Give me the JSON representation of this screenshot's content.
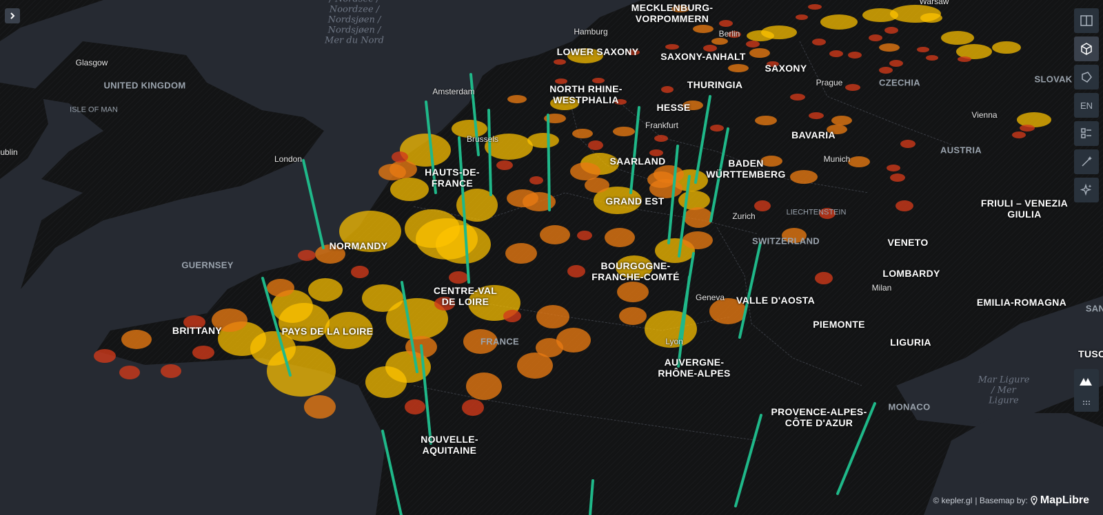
{
  "map": {
    "labels": [
      {
        "text": "MECKLENBURG-\nVORPOMMERN",
        "type": "region"
      },
      {
        "text": "Hamburg",
        "type": "city"
      },
      {
        "text": "LOWER SAXONY",
        "type": "region"
      },
      {
        "text": "Berlin",
        "type": "city"
      },
      {
        "text": "SAXONY-ANHALT",
        "type": "region"
      },
      {
        "text": "SAXONY",
        "type": "region"
      },
      {
        "text": "Warsaw",
        "type": "city"
      },
      {
        "text": "Glasgow",
        "type": "city"
      },
      {
        "text": "UNITED KINGDOM",
        "type": "country"
      },
      {
        "text": "ISLE OF MAN",
        "type": "small"
      },
      {
        "text": "ublin",
        "type": "city"
      },
      {
        "text": "Amsterdam",
        "type": "city"
      },
      {
        "text": "NORTH RHINE-\nWESTPHALIA",
        "type": "region"
      },
      {
        "text": "THURINGIA",
        "type": "region"
      },
      {
        "text": "HESSE",
        "type": "region"
      },
      {
        "text": "Prague",
        "type": "city"
      },
      {
        "text": "CZECHIA",
        "type": "country"
      },
      {
        "text": "SLOVAK",
        "type": "country"
      },
      {
        "text": "Frankfurt",
        "type": "city"
      },
      {
        "text": "BAVARIA",
        "type": "region"
      },
      {
        "text": "Vienna",
        "type": "city"
      },
      {
        "text": "Brussels",
        "type": "city"
      },
      {
        "text": "London",
        "type": "city"
      },
      {
        "text": "AUSTRIA",
        "type": "country"
      },
      {
        "text": "HAUTS-DE-\nFRANCE",
        "type": "region"
      },
      {
        "text": "SAARLAND",
        "type": "region"
      },
      {
        "text": "BADEN\nWÜRTTEMBERG",
        "type": "region"
      },
      {
        "text": "Munich",
        "type": "city"
      },
      {
        "text": "GRAND EST",
        "type": "region"
      },
      {
        "text": "LIECHTENSTEIN",
        "type": "small"
      },
      {
        "text": "FRIULI – VENEZIA\nGIULIA",
        "type": "region"
      },
      {
        "text": "Zurich",
        "type": "city"
      },
      {
        "text": "NORMANDY",
        "type": "region"
      },
      {
        "text": "SWITZERLAND",
        "type": "country"
      },
      {
        "text": "VENETO",
        "type": "region"
      },
      {
        "text": "GUERNSEY",
        "type": "country"
      },
      {
        "text": "BOURGOGNE-\nFRANCHE-COMTÉ",
        "type": "region"
      },
      {
        "text": "LOMBARDY",
        "type": "region"
      },
      {
        "text": "Milan",
        "type": "city"
      },
      {
        "text": "CENTRE-VAL\nDE LOIRE",
        "type": "region"
      },
      {
        "text": "Geneva",
        "type": "city"
      },
      {
        "text": "VALLE D'AOSTA",
        "type": "region"
      },
      {
        "text": "EMILIA-ROMAGNA",
        "type": "region"
      },
      {
        "text": "SAN",
        "type": "country"
      },
      {
        "text": "BRITTANY",
        "type": "region"
      },
      {
        "text": "PAYS DE LA LOIRE",
        "type": "region"
      },
      {
        "text": "PIEMONTE",
        "type": "region"
      },
      {
        "text": "FRANCE",
        "type": "country"
      },
      {
        "text": "Lyon",
        "type": "city"
      },
      {
        "text": "LIGURIA",
        "type": "region"
      },
      {
        "text": "TUSCA",
        "type": "region"
      },
      {
        "text": "AUVERGNE-\nRHÔNE-ALPES",
        "type": "region"
      },
      {
        "text": "Mar Ligure\n/ Mer\nLigure",
        "type": "sea"
      },
      {
        "text": "MONACO",
        "type": "country"
      },
      {
        "text": "PROVENCE-ALPES-\nCÔTE D'AZUR",
        "type": "region"
      },
      {
        "text": "NOUVELLE-\nAQUITAINE",
        "type": "region"
      },
      {
        "text": "/ Nordsee /\nNoordzee /\nNordsjøen /\nNordsjøen /\nMer du Nord",
        "type": "sea"
      }
    ]
  },
  "sidebar_toggle": {
    "icon": "chevron-right-icon"
  },
  "toolbar": [
    {
      "name": "split-map-button",
      "icon": "split-map-icon",
      "label": ""
    },
    {
      "name": "3d-view-button",
      "icon": "cube-icon",
      "label": "",
      "active": true
    },
    {
      "name": "draw-polygon-button",
      "icon": "polygon-icon",
      "label": ""
    },
    {
      "name": "locale-button",
      "icon": "",
      "label": "EN"
    },
    {
      "name": "legend-button",
      "icon": "legend-icon",
      "label": ""
    },
    {
      "name": "effects-button",
      "icon": "magic-wand-icon",
      "label": ""
    },
    {
      "name": "ai-assistant-button",
      "icon": "sparkle-icon",
      "label": ""
    }
  ],
  "attribution": {
    "kepler": "© kepler.gl",
    "sep": " | Basemap by:",
    "maplibre": "MapLibre"
  },
  "colors": {
    "background": "#242730",
    "land": "#151515",
    "ocean": "#262a32",
    "column": "#1fb889",
    "point_low": "#d23a1a",
    "point_mid": "#e87a12",
    "point_high": "#ffc400"
  }
}
